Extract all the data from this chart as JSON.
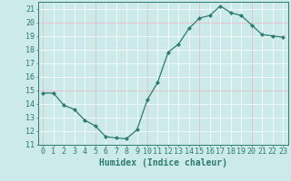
{
  "x": [
    0,
    1,
    2,
    3,
    4,
    5,
    6,
    7,
    8,
    9,
    10,
    11,
    12,
    13,
    14,
    15,
    16,
    17,
    18,
    19,
    20,
    21,
    22,
    23
  ],
  "y": [
    14.8,
    14.8,
    13.9,
    13.6,
    12.8,
    12.4,
    11.6,
    11.5,
    11.45,
    12.1,
    14.3,
    15.6,
    17.8,
    18.4,
    19.55,
    20.3,
    20.5,
    21.2,
    20.7,
    20.5,
    19.8,
    19.1,
    19.0,
    18.9
  ],
  "xlabel": "Humidex (Indice chaleur)",
  "ylim": [
    11,
    21.5
  ],
  "xlim": [
    -0.5,
    23.5
  ],
  "yticks": [
    11,
    12,
    13,
    14,
    15,
    16,
    17,
    18,
    19,
    20,
    21
  ],
  "xticks": [
    0,
    1,
    2,
    3,
    4,
    5,
    6,
    7,
    8,
    9,
    10,
    11,
    12,
    13,
    14,
    15,
    16,
    17,
    18,
    19,
    20,
    21,
    22,
    23
  ],
  "line_color": "#2d7a6e",
  "marker": "D",
  "marker_size": 2.2,
  "bg_color": "#cceaea",
  "grid_color": "#ffffff",
  "grid_red_color": "#e8b8b8",
  "tick_color": "#2d7a6e",
  "xlabel_fontsize": 7,
  "tick_fontsize": 6,
  "linewidth": 0.9
}
